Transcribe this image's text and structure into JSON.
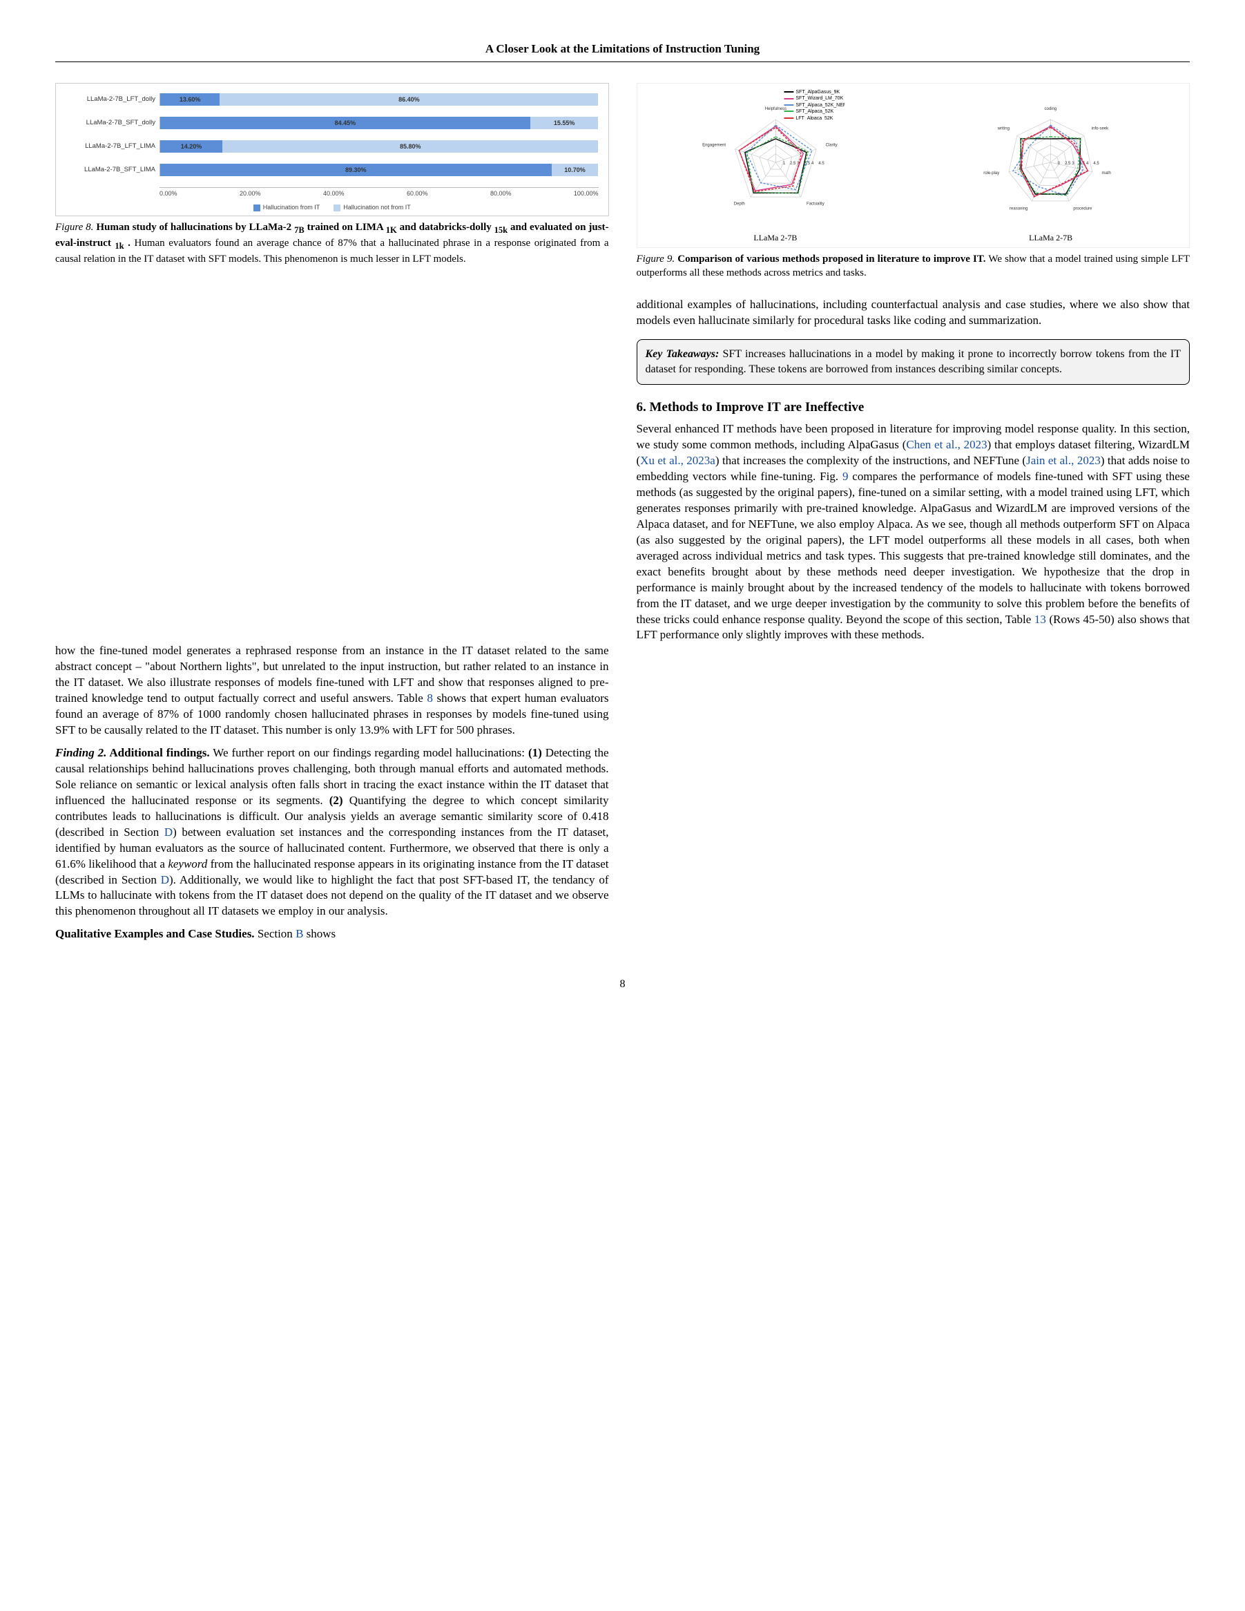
{
  "header": {
    "title": "A Closer Look at the Limitations of Instruction Tuning"
  },
  "barChart": {
    "type": "bar",
    "orientation": "horizontal-stacked",
    "rows": [
      {
        "label": "LLaMa-2-7B_LFT_dolly",
        "a": 13.6,
        "b": 86.4
      },
      {
        "label": "LLaMa-2-7B_SFT_dolly",
        "a": 84.45,
        "b": 15.55
      },
      {
        "label": "LLaMa-2-7B_LFT_LIMA",
        "a": 14.2,
        "b": 85.8
      },
      {
        "label": "LLaMa-2-7B_SFT_LIMA",
        "a": 89.3,
        "b": 10.7
      }
    ],
    "xticks": [
      "0.00%",
      "20.00%",
      "40.00%",
      "60.00%",
      "80.00%",
      "100.00%"
    ],
    "series_a_label": "Hallucination from IT",
    "series_b_label": "Hallucination not from IT",
    "color_a": "#5b8ed6",
    "color_b": "#bcd3ef",
    "background": "#ffffff",
    "border": "#cccccc",
    "title_fontsize": 10
  },
  "figure8": {
    "num": "Figure 8.",
    "title": "Human study of hallucinations by LLaMa-2 ",
    "title_sub": "7B",
    "line2a": "trained on LIMA ",
    "line2sub1": "1K",
    "line2b": " and databricks-dolly ",
    "line2sub2": "15k",
    "line2c": " and evaluated",
    "line3a": "on just-eval-instruct ",
    "line3sub": "1k",
    "line3b": " .",
    "rest": " Human evaluators found an average chance of 87% that a hallucinated phrase in a response originated from a causal relation in the IT dataset with SFT models. This phenomenon is much lesser in LFT models."
  },
  "radar": {
    "type": "radar",
    "panels": [
      {
        "sub": "LLaMa 2-7B",
        "axes": [
          "Helpfulness",
          "Clarity",
          "Factuality",
          "Depth",
          "Engagement"
        ],
        "ticks": [
          "1",
          "2.5",
          "3",
          "3.5",
          "4",
          "4.5"
        ]
      },
      {
        "sub": "LLaMa 2-7B",
        "axes": [
          "coding",
          "info-seek",
          "math",
          "procedure",
          "reasoning",
          "role-play",
          "writing"
        ],
        "ticks": [
          "0",
          "2.5",
          "3",
          "3.5",
          "4",
          "4.5"
        ]
      }
    ],
    "legend": [
      {
        "label": "SFT_AlpaGasus_9K",
        "color": "#000000"
      },
      {
        "label": "SFT_Wizard_LM_70K",
        "color": "#d63c87"
      },
      {
        "label": "SFT_Alpaca_52K_NEFTune",
        "color": "#5b8ed6"
      },
      {
        "label": "SFT_Alpaca_52K",
        "color": "#33b24a"
      },
      {
        "label": "LFT_Alpaca_52K",
        "color": "#d62d2d"
      }
    ],
    "grid_color": "#cccccc"
  },
  "figure9": {
    "num": "Figure 9.",
    "title": "Comparison of various methods proposed in literature to improve IT.",
    "rest": " We show that a model trained using simple LFT outperforms all these methods across metrics and tasks."
  },
  "colL": {
    "p1": "how the fine-tuned model generates a rephrased response from an instance in the IT dataset related to the same abstract concept – \"about Northern lights\", but unrelated to the input instruction, but rather related to an instance in the IT dataset. We also illustrate responses of models fine-tuned with LFT and show that responses aligned to pre-trained knowledge tend to output factually correct and useful answers. Table ",
    "p1_link": "8",
    "p1b": " shows that expert human evaluators found an average of 87% of 1000 randomly chosen hallucinated phrases in responses by models fine-tuned using SFT to be causally related to the IT dataset. This number is only 13.9% with LFT for 500 phrases.",
    "finding2_label": "Finding 2.",
    "finding2_title": " Additional findings.",
    "finding2_body_a": " We further report on our findings regarding model hallucinations: ",
    "bold1": "(1)",
    "finding2_body_b": " Detecting the causal relationships behind hallucinations proves challenging, both through manual efforts and automated methods. Sole reliance on semantic or lexical analysis often falls short in tracing the exact instance within the IT dataset that influenced the hallucinated response or its segments. ",
    "bold2": "(2)",
    "finding2_body_c": " Quantifying the degree to which concept similarity contributes leads to hallucinations is difficult. Our analysis yields an average semantic similarity score of 0.418 (described in Section ",
    "link_D1": "D",
    "finding2_body_d": ") between evaluation set instances and the corresponding instances from the IT dataset, identified by human evaluators as the source of hallucinated content. Furthermore, we observed that there is only a 61.6% likelihood that a ",
    "ital_keyword": "keyword",
    "finding2_body_e": " from the hallucinated response appears in its originating instance from the IT dataset (described in Section ",
    "link_D2": "D",
    "finding2_body_f": "). Additionally, we would like to highlight the fact that post SFT-based IT, the tendancy of LLMs to hallucinate with tokens from the IT dataset does not depend on the quality of the IT dataset and we observe this phenomenon throughout all IT datasets we employ in our analysis.",
    "qual_label": "Qualitative Examples and Case Studies.",
    "qual_body_a": " Section ",
    "link_B": "B",
    "qual_body_b": " shows"
  },
  "colR": {
    "topPara": "additional examples of hallucinations, including counterfactual analysis and case studies, where we also show that models even hallucinate similarly for procedural tasks like coding and summarization.",
    "takeaway_label": "Key Takeaways:",
    "takeaway_body": " SFT increases hallucinations in a model by making it prone to incorrectly borrow tokens from the IT dataset for responding. These tokens are borrowed from instances describing similar concepts.",
    "section6": "6. Methods to Improve IT are Ineffective",
    "p_a": "Several enhanced IT methods have been proposed in literature for improving model response quality. In this section, we study some common methods, including AlpaGasus (",
    "cite1": "Chen et al., 2023",
    "p_b": ") that employs dataset filtering, WizardLM (",
    "cite2": "Xu et al., 2023a",
    "p_c": ") that increases the complexity of the instructions, and NEFTune (",
    "cite3": "Jain et al., 2023",
    "p_d": ") that adds noise to embedding vectors while fine-tuning. Fig. ",
    "link9": "9",
    "p_e": " compares the performance of models fine-tuned with SFT using these methods (as suggested by the original papers), fine-tuned on a similar setting, with a model trained using LFT, which generates responses primarily with pre-trained knowledge. AlpaGasus and WizardLM are improved versions of the Alpaca dataset, and for NEFTune, we also employ Alpaca. As we see, though all methods outperform SFT on Alpaca (as also suggested by the original papers), the LFT model outperforms all these models in all cases, both when averaged across individual metrics and task types. This suggests that pre-trained knowledge still dominates, and the exact benefits brought about by these methods need deeper investigation. We hypothesize that the drop in performance is mainly brought about by the increased tendency of the models to hallucinate with tokens borrowed from the IT dataset, and we urge deeper investigation by the community to solve this problem before the benefits of these tricks could enhance response quality. Beyond the scope of this section, Table ",
    "link13": "13",
    "p_f": " (Rows 45-50) also shows that LFT performance only slightly improves with these methods."
  },
  "pageNumber": "8"
}
